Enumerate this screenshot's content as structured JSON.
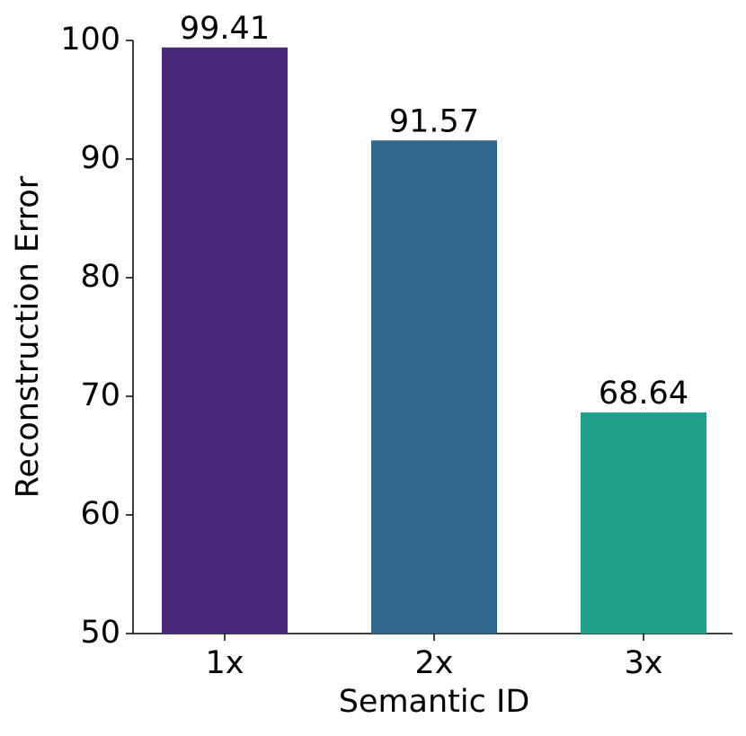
{
  "chart_data": {
    "type": "bar",
    "categories": [
      "1x",
      "2x",
      "3x"
    ],
    "values": [
      99.41,
      91.57,
      68.64
    ],
    "colors": [
      "#482878",
      "#31688e",
      "#1f9e89"
    ],
    "xlabel": "Semantic ID",
    "ylabel": "Reconstruction Error",
    "ylim": [
      50,
      100
    ],
    "yticks": [
      50,
      60,
      70,
      80,
      90,
      100
    ],
    "grid": false
  }
}
